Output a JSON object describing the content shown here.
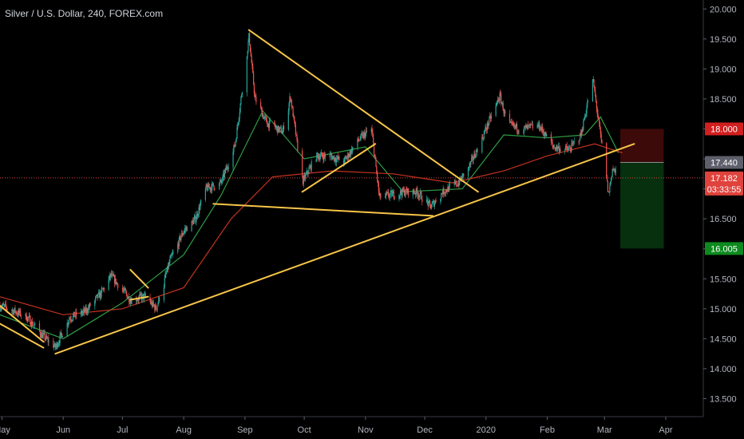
{
  "header": {
    "title": "Silver / U.S. Dollar, 240, FOREX.com"
  },
  "colors": {
    "background": "#000000",
    "up": "#26a69a",
    "down": "#ef5350",
    "ma_fast": "#2e9e43",
    "ma_slow": "#c4331f",
    "trendline": "#f7c548",
    "price_line": "#e0423c",
    "stop_zone": "#3d0a0a",
    "target_zone": "#06300e"
  },
  "chart_data": {
    "type": "candlestick",
    "symbol": "Silver / U.S. Dollar",
    "interval": "240",
    "source": "FOREX.com",
    "x_ticks": [
      "May",
      "Jun",
      "Jul",
      "Aug",
      "Sep",
      "Oct",
      "Nov",
      "Dec",
      "2020",
      "Feb",
      "Mar",
      "Apr"
    ],
    "y_ticks": [
      "13.500",
      "14.000",
      "14.500",
      "15.000",
      "15.500",
      "16.000",
      "16.500",
      "17.000",
      "17.500",
      "18.000",
      "18.500",
      "19.000",
      "19.500",
      "20.000"
    ],
    "ylim": [
      13.2,
      20.15
    ],
    "xlim": [
      "2019-04-30",
      "2020-04-20"
    ],
    "price_path": [
      [
        "2019-04-30",
        15.05
      ],
      [
        "2019-05-08",
        14.95
      ],
      [
        "2019-05-14",
        14.85
      ],
      [
        "2019-05-20",
        14.6
      ],
      [
        "2019-05-28",
        14.35
      ],
      [
        "2019-06-04",
        14.85
      ],
      [
        "2019-06-12",
        14.95
      ],
      [
        "2019-06-20",
        15.25
      ],
      [
        "2019-06-25",
        15.55
      ],
      [
        "2019-07-05",
        15.15
      ],
      [
        "2019-07-12",
        15.2
      ],
      [
        "2019-07-18",
        15.0
      ],
      [
        "2019-07-25",
        15.8
      ],
      [
        "2019-08-01",
        16.3
      ],
      [
        "2019-08-07",
        16.5
      ],
      [
        "2019-08-12",
        17.0
      ],
      [
        "2019-08-20",
        17.1
      ],
      [
        "2019-08-27",
        17.75
      ],
      [
        "2019-09-03",
        19.55
      ],
      [
        "2019-09-06",
        18.5
      ],
      [
        "2019-09-12",
        18.1
      ],
      [
        "2019-09-20",
        17.95
      ],
      [
        "2019-09-24",
        18.55
      ],
      [
        "2019-09-30",
        17.1
      ],
      [
        "2019-10-07",
        17.55
      ],
      [
        "2019-10-14",
        17.55
      ],
      [
        "2019-10-21",
        17.45
      ],
      [
        "2019-10-28",
        17.8
      ],
      [
        "2019-11-04",
        18.0
      ],
      [
        "2019-11-08",
        16.85
      ],
      [
        "2019-11-14",
        16.9
      ],
      [
        "2019-11-20",
        16.95
      ],
      [
        "2019-11-27",
        16.95
      ],
      [
        "2019-12-04",
        16.7
      ],
      [
        "2019-12-10",
        16.95
      ],
      [
        "2019-12-18",
        17.1
      ],
      [
        "2019-12-24",
        17.4
      ],
      [
        "2019-12-30",
        17.85
      ],
      [
        "2020-01-08",
        18.55
      ],
      [
        "2020-01-12",
        18.05
      ],
      [
        "2020-01-20",
        18.0
      ],
      [
        "2020-01-28",
        18.05
      ],
      [
        "2020-02-04",
        17.7
      ],
      [
        "2020-02-12",
        17.65
      ],
      [
        "2020-02-18",
        17.9
      ],
      [
        "2020-02-24",
        18.85
      ],
      [
        "2020-02-27",
        18.1
      ],
      [
        "2020-03-03",
        16.9
      ],
      [
        "2020-03-05",
        17.35
      ],
      [
        "2020-03-08",
        17.18
      ]
    ],
    "moving_averages": [
      {
        "color": "ma_fast",
        "points": [
          [
            "2019-04-30",
            14.9
          ],
          [
            "2019-06-01",
            14.5
          ],
          [
            "2019-07-01",
            15.1
          ],
          [
            "2019-08-01",
            15.9
          ],
          [
            "2019-08-20",
            16.9
          ],
          [
            "2019-09-10",
            18.3
          ],
          [
            "2019-10-01",
            17.5
          ],
          [
            "2019-11-01",
            17.7
          ],
          [
            "2019-11-20",
            16.95
          ],
          [
            "2019-12-20",
            17.0
          ],
          [
            "2020-01-10",
            17.9
          ],
          [
            "2020-02-01",
            17.85
          ],
          [
            "2020-02-20",
            17.9
          ],
          [
            "2020-02-28",
            18.2
          ],
          [
            "2020-03-08",
            17.6
          ]
        ]
      },
      {
        "color": "ma_slow",
        "points": [
          [
            "2019-04-30",
            15.2
          ],
          [
            "2019-06-01",
            14.9
          ],
          [
            "2019-07-01",
            15.0
          ],
          [
            "2019-08-01",
            15.35
          ],
          [
            "2019-08-25",
            16.5
          ],
          [
            "2019-09-15",
            17.2
          ],
          [
            "2019-10-15",
            17.3
          ],
          [
            "2019-11-15",
            17.25
          ],
          [
            "2019-12-15",
            17.1
          ],
          [
            "2020-01-10",
            17.3
          ],
          [
            "2020-02-01",
            17.55
          ],
          [
            "2020-02-25",
            17.75
          ],
          [
            "2020-03-10",
            17.6
          ]
        ]
      }
    ],
    "trendlines": [
      [
        [
          "2019-04-30",
          15.05
        ],
        [
          "2019-05-22",
          14.45
        ]
      ],
      [
        [
          "2019-04-30",
          14.75
        ],
        [
          "2019-05-22",
          14.35
        ]
      ],
      [
        [
          "2019-05-28",
          14.25
        ],
        [
          "2020-03-16",
          17.75
        ]
      ],
      [
        [
          "2019-07-05",
          15.65
        ],
        [
          "2019-07-14",
          15.35
        ]
      ],
      [
        [
          "2019-07-05",
          15.15
        ],
        [
          "2019-07-14",
          15.2
        ]
      ],
      [
        [
          "2019-08-16",
          16.75
        ],
        [
          "2019-12-05",
          16.55
        ]
      ],
      [
        [
          "2019-09-03",
          19.65
        ],
        [
          "2019-12-28",
          16.95
        ]
      ],
      [
        [
          "2019-09-30",
          16.95
        ],
        [
          "2019-11-06",
          17.75
        ]
      ]
    ],
    "position": {
      "start": "2020-03-09",
      "end": "2020-03-31",
      "entry": 17.44,
      "stop": 18.0,
      "target": 16.005
    },
    "last_price": 17.182,
    "price_tags": [
      {
        "value": 18.0,
        "label": "18.000",
        "bg": "#d21f1f"
      },
      {
        "value": 17.44,
        "label": "17.440",
        "bg": "#5d606b"
      },
      {
        "value": 17.182,
        "label": "17.182",
        "bg": "#e0423c",
        "countdown": "03:33:55"
      },
      {
        "value": 16.005,
        "label": "16.005",
        "bg": "#0d8a1e"
      }
    ]
  }
}
